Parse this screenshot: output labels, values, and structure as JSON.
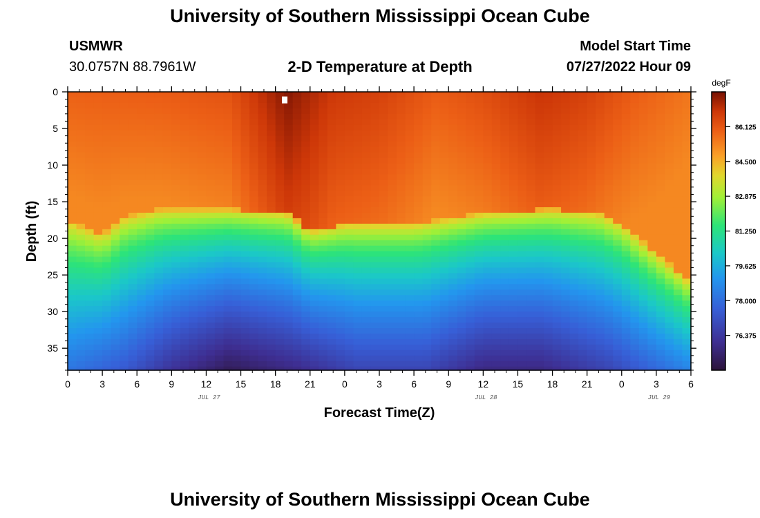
{
  "header": {
    "title": "University of Southern Mississippi Ocean Cube",
    "station": "USMWR",
    "coords": "30.0757N  88.7961W",
    "plot_title": "2-D Temperature at Depth",
    "model_start_label": "Model Start Time",
    "model_start_value": "07/27/2022 Hour 09"
  },
  "footer": {
    "title": "University of Southern Mississippi Ocean Cube"
  },
  "chart_data": {
    "type": "heatmap",
    "title": "2-D Temperature at Depth",
    "xlabel": "Forecast Time(Z)",
    "ylabel": "Depth (ft)",
    "x_ticks": [
      "0",
      "3",
      "6",
      "9",
      "12",
      "15",
      "18",
      "21",
      "0",
      "3",
      "6",
      "9",
      "12",
      "15",
      "18",
      "21",
      "0",
      "3",
      "6"
    ],
    "x_range_hours": [
      0,
      54
    ],
    "date_labels": [
      {
        "text": "JUL 27",
        "hour": 12
      },
      {
        "text": "JUL 28",
        "hour": 36
      },
      {
        "text": "JUL 29",
        "hour": 51
      }
    ],
    "y_ticks": [
      0,
      5,
      10,
      15,
      20,
      25,
      30,
      35
    ],
    "ylim": [
      0,
      38
    ],
    "colorbar": {
      "unit": "degF",
      "min": 74.75,
      "max": 87.75,
      "tick_values": [
        86.125,
        84.5,
        82.875,
        81.25,
        79.625,
        78.0,
        76.375
      ],
      "tick_labels": [
        "86.125",
        "84.500",
        "82.875",
        "81.250",
        "79.625",
        "78.000",
        "76.375"
      ]
    },
    "thermocline_depth_ft": [
      {
        "hour": 0,
        "depth": 17.5
      },
      {
        "hour": 3,
        "depth": 19.5
      },
      {
        "hour": 5,
        "depth": 17.0
      },
      {
        "hour": 8,
        "depth": 16.0
      },
      {
        "hour": 14,
        "depth": 16.0
      },
      {
        "hour": 19,
        "depth": 16.5
      },
      {
        "hour": 21,
        "depth": 19.0
      },
      {
        "hour": 24,
        "depth": 18.0
      },
      {
        "hour": 30,
        "depth": 18.0
      },
      {
        "hour": 36,
        "depth": 16.5
      },
      {
        "hour": 42,
        "depth": 16.0
      },
      {
        "hour": 46,
        "depth": 16.5
      },
      {
        "hour": 48,
        "depth": 18.0
      },
      {
        "hour": 51,
        "depth": 22.0
      },
      {
        "hour": 54,
        "depth": 26.0
      }
    ],
    "surface_temp_degF": [
      {
        "hour": 0,
        "temp": 85.9
      },
      {
        "hour": 8,
        "temp": 86.0
      },
      {
        "hour": 14,
        "temp": 86.2
      },
      {
        "hour": 19,
        "temp": 87.6
      },
      {
        "hour": 23,
        "temp": 86.8
      },
      {
        "hour": 27,
        "temp": 86.6
      },
      {
        "hour": 32,
        "temp": 86.0
      },
      {
        "hour": 36,
        "temp": 86.3
      },
      {
        "hour": 41,
        "temp": 86.9
      },
      {
        "hour": 45,
        "temp": 86.6
      },
      {
        "hour": 49,
        "temp": 86.0
      },
      {
        "hour": 54,
        "temp": 85.5
      }
    ],
    "bottom_temp_degF": [
      {
        "hour": 0,
        "temp": 78.2
      },
      {
        "hour": 5,
        "temp": 77.4
      },
      {
        "hour": 9,
        "temp": 76.2
      },
      {
        "hour": 14,
        "temp": 75.2
      },
      {
        "hour": 20,
        "temp": 75.9
      },
      {
        "hour": 25,
        "temp": 76.8
      },
      {
        "hour": 31,
        "temp": 76.8
      },
      {
        "hour": 36,
        "temp": 75.8
      },
      {
        "hour": 41,
        "temp": 75.8
      },
      {
        "hour": 47,
        "temp": 76.8
      },
      {
        "hour": 54,
        "temp": 78.6
      }
    ]
  }
}
